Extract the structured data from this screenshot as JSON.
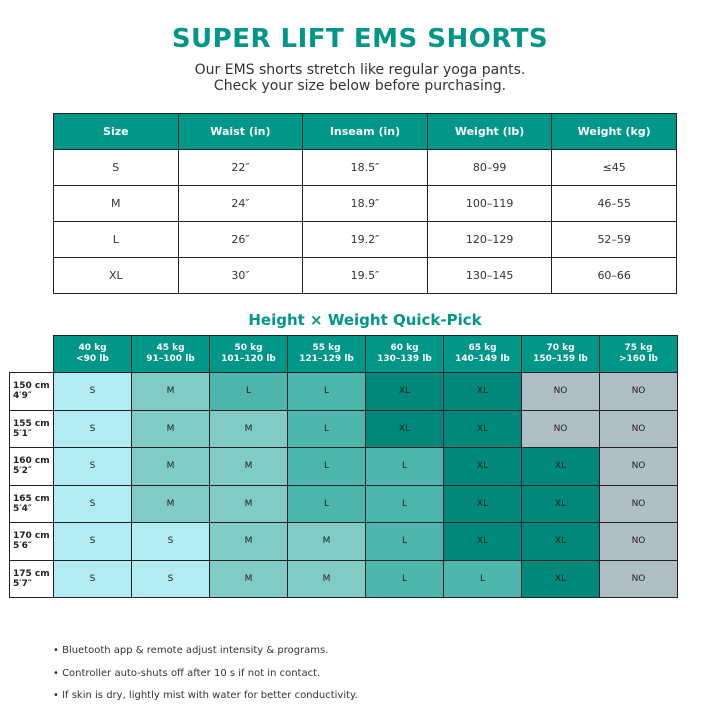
{
  "title": "SUPER LIFT EMS SHORTS",
  "subtitle": [
    "Our EMS shorts stretch like regular yoga pants.",
    "Check your size below before purchasing."
  ],
  "size_table": {
    "headers": [
      "Size",
      "Waist (in)",
      "Inseam (in)",
      "Weight (lb)",
      "Weight (kg)"
    ],
    "rows": [
      [
        "S",
        "22″",
        "18.5″",
        "80–99",
        "≤45"
      ],
      [
        "M",
        "24″",
        "18.9″",
        "100–119",
        "46–55"
      ],
      [
        "L",
        "26″",
        "19.2″",
        "120–129",
        "52–59"
      ],
      [
        "XL",
        "30″",
        "19.5″",
        "130–145",
        "60–66"
      ]
    ]
  },
  "quick_pick": {
    "title": "Height × Weight Quick-Pick",
    "columns": [
      [
        "40 kg",
        "<90 lb"
      ],
      [
        "45 kg",
        "91–100 lb"
      ],
      [
        "50 kg",
        "101–120 lb"
      ],
      [
        "55 kg",
        "121–129 lb"
      ],
      [
        "60 kg",
        "130–139 lb"
      ],
      [
        "65 kg",
        "140–149 lb"
      ],
      [
        "70 kg",
        "150–159 lb"
      ],
      [
        "75 kg",
        ">160 lb"
      ]
    ],
    "rows": [
      {
        "height": [
          "150 cm",
          "4′9″"
        ],
        "cells": [
          "S",
          "M",
          "L",
          "L",
          "XL",
          "XL",
          "NO",
          "NO"
        ]
      },
      {
        "height": [
          "155 cm",
          "5′1″"
        ],
        "cells": [
          "S",
          "M",
          "M",
          "L",
          "XL",
          "XL",
          "NO",
          "NO"
        ]
      },
      {
        "height": [
          "160 cm",
          "5′2″"
        ],
        "cells": [
          "S",
          "M",
          "M",
          "L",
          "L",
          "XL",
          "XL",
          "NO"
        ]
      },
      {
        "height": [
          "165 cm",
          "5′4″"
        ],
        "cells": [
          "S",
          "M",
          "M",
          "L",
          "L",
          "XL",
          "XL",
          "NO"
        ]
      },
      {
        "height": [
          "170 cm",
          "5′6″"
        ],
        "cells": [
          "S",
          "S",
          "M",
          "M",
          "L",
          "XL",
          "XL",
          "NO"
        ]
      },
      {
        "height": [
          "175 cm",
          "5′7″"
        ],
        "cells": [
          "S",
          "S",
          "M",
          "M",
          "L",
          "L",
          "XL",
          "NO"
        ]
      }
    ],
    "colors": {
      "S": "#b2ebf2",
      "M": "#80cbc4",
      "L": "#4db6ac",
      "XL": "#00897b",
      "NO": "#b0bec5",
      "header": "#009688"
    }
  },
  "notes": [
    "• Bluetooth app & remote adjust intensity & programs.",
    "• Controller auto-shuts off after 10 s if not in contact.",
    "• If skin is dry, lightly mist with water for better conductivity."
  ]
}
